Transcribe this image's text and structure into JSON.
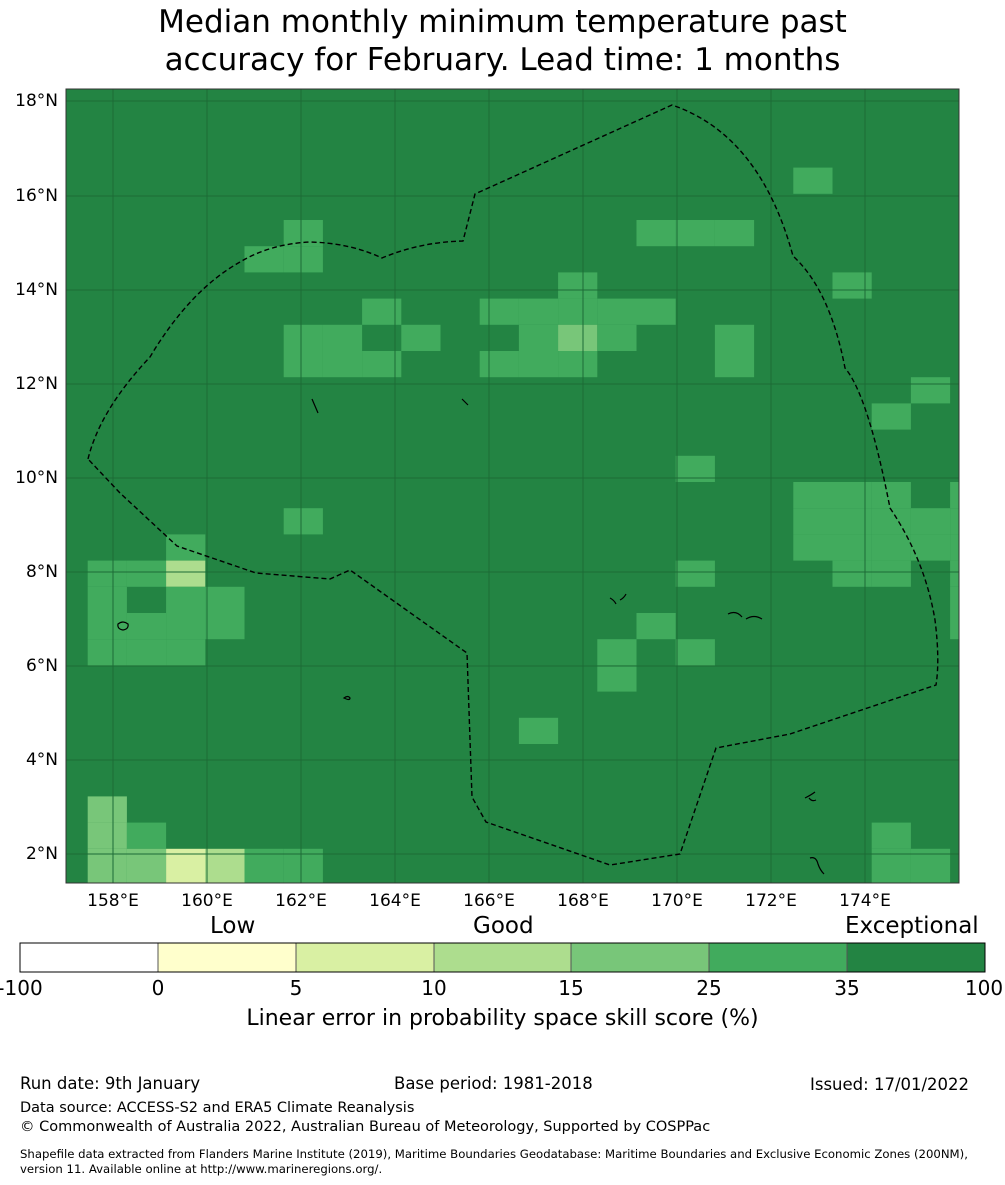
{
  "title_line1": "Median monthly minimum temperature past",
  "title_line2": "accuracy for February. Lead time: 1 months",
  "map": {
    "lat_labels": [
      "18°N",
      "16°N",
      "14°N",
      "12°N",
      "10°N",
      "8°N",
      "6°N",
      "4°N",
      "2°N"
    ],
    "lon_labels": [
      "158°E",
      "160°E",
      "162°E",
      "164°E",
      "166°E",
      "168°E",
      "170°E",
      "172°E",
      "174°E"
    ],
    "boundary_style": "dashed black",
    "cell_colors": {
      "exceptional": "#238443",
      "c25_35": "#41ab5d",
      "c15_25": "#78c679",
      "c10_15": "#addd8e",
      "c5_10": "#d9f0a3",
      "c0_5": "#ffffcc"
    }
  },
  "colorbar": {
    "words": [
      "Low",
      "Good",
      "Exceptional"
    ],
    "ticks": [
      "-100",
      "0",
      "5",
      "10",
      "15",
      "25",
      "35",
      "100"
    ],
    "colors": [
      "#ffffff",
      "#ffffcc",
      "#d9f0a3",
      "#addd8e",
      "#78c679",
      "#41ab5d",
      "#238443"
    ],
    "label": "Linear error in probability space skill score (%)"
  },
  "footer": {
    "run_date": "Run date: 9th January",
    "base_period": "Base period: 1981-2018",
    "issued": "Issued: 17/01/2022",
    "data_source": "Data source: ACCESS-S2 and ERA5 Climate Reanalysis",
    "copyright": "© Commonwealth of Australia 2022, Australian Bureau of Meteorology, Supported by COSPPac",
    "shapefile_line1": "Shapefile data extracted from Flanders Marine Institute (2019), Maritime Boundaries Geodatabase: Maritime Boundaries and Exclusive Economic Zones (200NM),",
    "shapefile_line2": "version 11. Available online at http://www.marineregions.org/."
  }
}
